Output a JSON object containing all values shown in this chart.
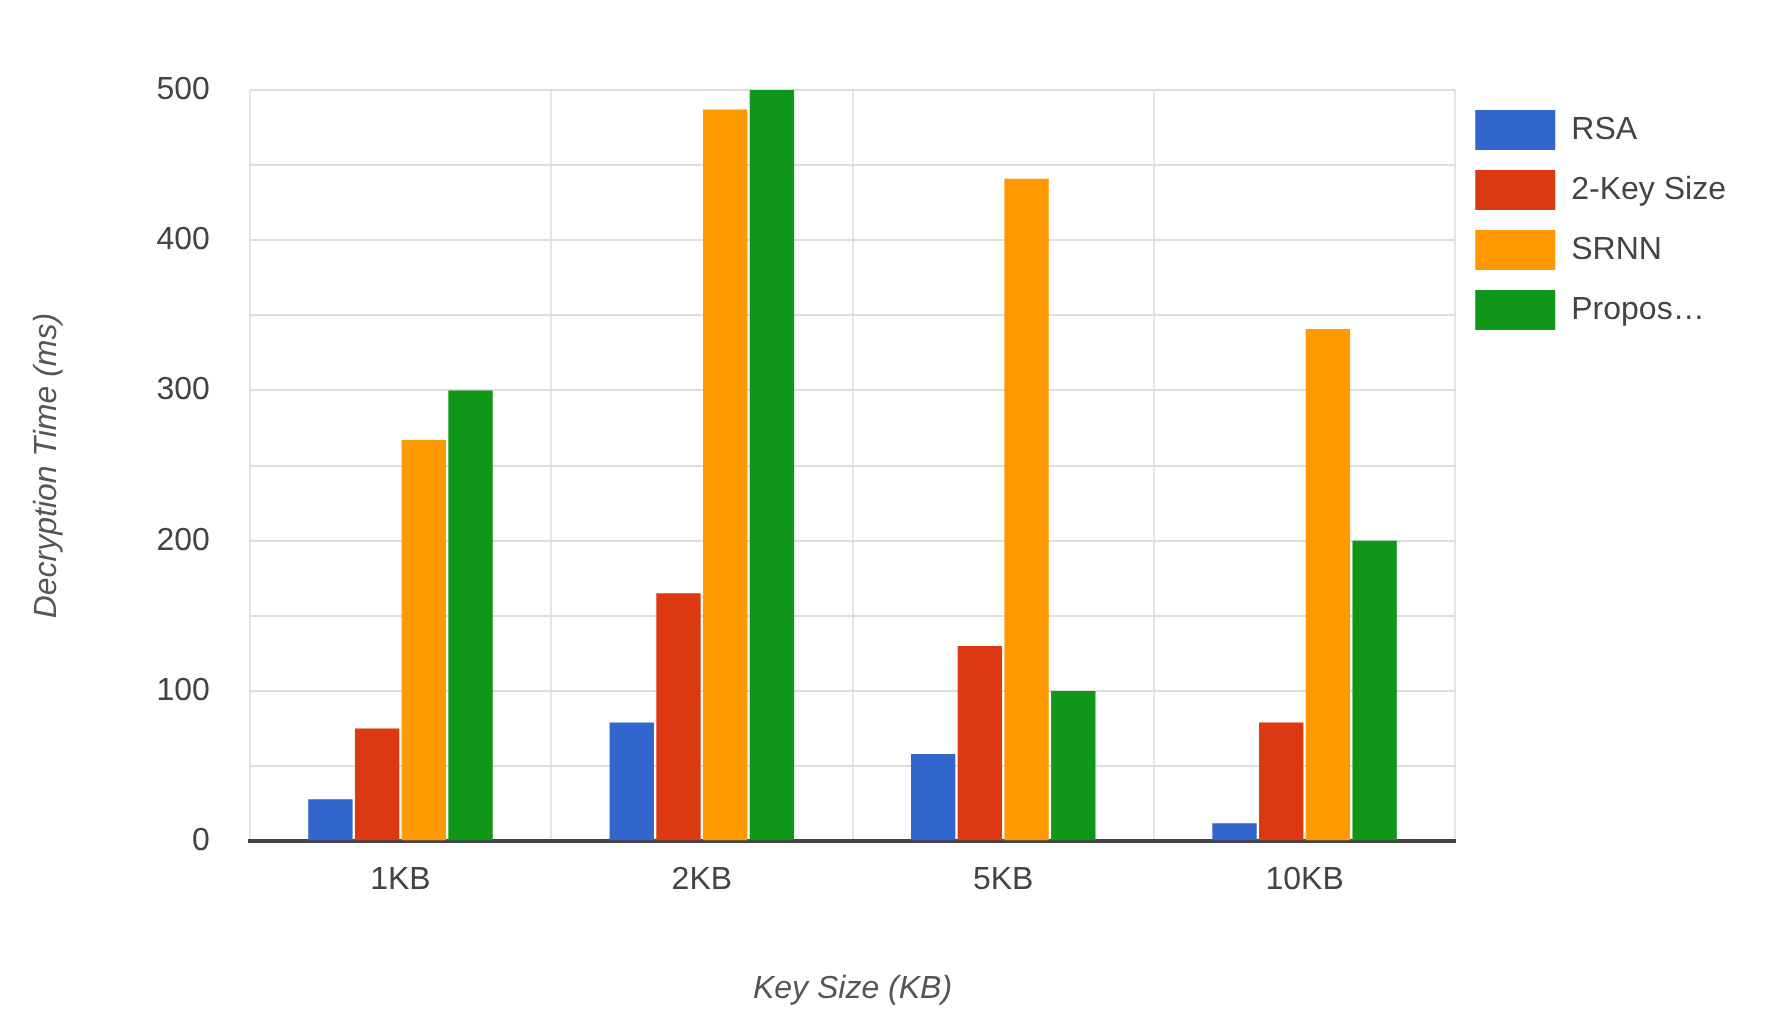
{
  "chart_data": {
    "type": "bar",
    "xlabel": "Key Size (KB)",
    "ylabel": "Decryption Time (ms)",
    "categories": [
      "1KB",
      "2KB",
      "5KB",
      "10KB"
    ],
    "series": [
      {
        "name": "RSA",
        "color": "#3366cc",
        "values": [
          28,
          79,
          58,
          12
        ]
      },
      {
        "name": "2-Key Size",
        "color": "#dc3912",
        "values": [
          75,
          165,
          130,
          79
        ]
      },
      {
        "name": "SRNN",
        "color": "#ff9900",
        "values": [
          267,
          487,
          441,
          341
        ]
      },
      {
        "name": "Propos…",
        "color": "#109618",
        "values": [
          300,
          500,
          100,
          200
        ]
      }
    ],
    "ylim": [
      0,
      500
    ],
    "yticks": [
      0,
      {
        "value": 50,
        "label": null
      },
      100,
      {
        "value": 150,
        "label": null
      },
      200,
      {
        "value": 250,
        "label": null
      },
      300,
      {
        "value": 350,
        "label": null
      },
      400,
      {
        "value": 450,
        "label": null
      },
      500
    ],
    "grid": true,
    "legend": "right"
  }
}
